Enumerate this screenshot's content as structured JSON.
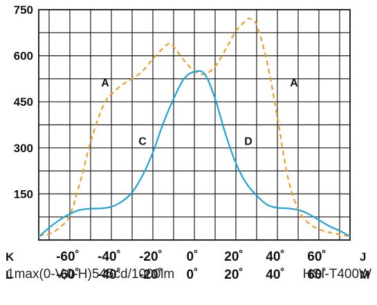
{
  "chart_data": {
    "type": "line",
    "xlim": [
      -75,
      75
    ],
    "ylim": [
      0,
      750
    ],
    "y_ticks": [
      150,
      300,
      450,
      600,
      750
    ],
    "y_tick_labels": [
      "150",
      "300",
      "450",
      "600",
      "750"
    ],
    "x_ticks": [
      -60,
      -40,
      -20,
      0,
      20,
      40,
      60
    ],
    "x_tick_rows": [
      {
        "key": "K",
        "end": "J",
        "labels": [
          "-60˚",
          "-40˚",
          "-20˚",
          "0˚",
          "20˚",
          "40˚",
          "60˚"
        ]
      },
      {
        "key": "L",
        "end": "M",
        "labels": [
          "-60˚",
          "-40˚",
          "-20˚",
          "0˚",
          "20˚",
          "40˚",
          "60˚"
        ]
      }
    ],
    "grid": true,
    "series": [
      {
        "style": "dashed",
        "color": "#f39a2a",
        "x": [
          -75,
          -70,
          -65,
          -60,
          -55,
          -50,
          -45,
          -42,
          -40,
          -35,
          -30,
          -25,
          -20,
          -15,
          -12,
          -10,
          -5,
          0,
          5,
          10,
          15,
          20,
          25,
          27,
          30,
          35,
          40,
          45,
          50,
          55,
          60,
          65,
          70,
          75
        ],
        "y": [
          15,
          20,
          40,
          80,
          190,
          320,
          420,
          460,
          475,
          505,
          525,
          550,
          590,
          625,
          640,
          630,
          585,
          550,
          540,
          565,
          620,
          680,
          715,
          720,
          700,
          580,
          400,
          205,
          100,
          55,
          35,
          25,
          18,
          12
        ]
      },
      {
        "style": "solid",
        "color": "#1ba3d9",
        "x": [
          -75,
          -70,
          -65,
          -60,
          -55,
          -50,
          -45,
          -40,
          -35,
          -30,
          -25,
          -20,
          -15,
          -10,
          -5,
          0,
          5,
          10,
          15,
          20,
          25,
          30,
          35,
          40,
          45,
          50,
          55,
          60,
          65,
          70,
          75
        ],
        "y": [
          10,
          40,
          65,
          85,
          98,
          102,
          103,
          108,
          125,
          155,
          210,
          285,
          380,
          460,
          525,
          548,
          540,
          460,
          345,
          250,
          185,
          145,
          115,
          105,
          103,
          98,
          85,
          65,
          45,
          30,
          12
        ]
      }
    ],
    "annotations": [
      {
        "text": "A",
        "x": -43,
        "y": 500
      },
      {
        "text": "A",
        "x": 48,
        "y": 500
      },
      {
        "text": "C",
        "x": -25,
        "y": 310
      },
      {
        "text": "D",
        "x": 26,
        "y": 310
      }
    ]
  },
  "footer": {
    "left": "1max(0-V,0-H)545cd/1000lm",
    "right": "HSI-T400W"
  }
}
